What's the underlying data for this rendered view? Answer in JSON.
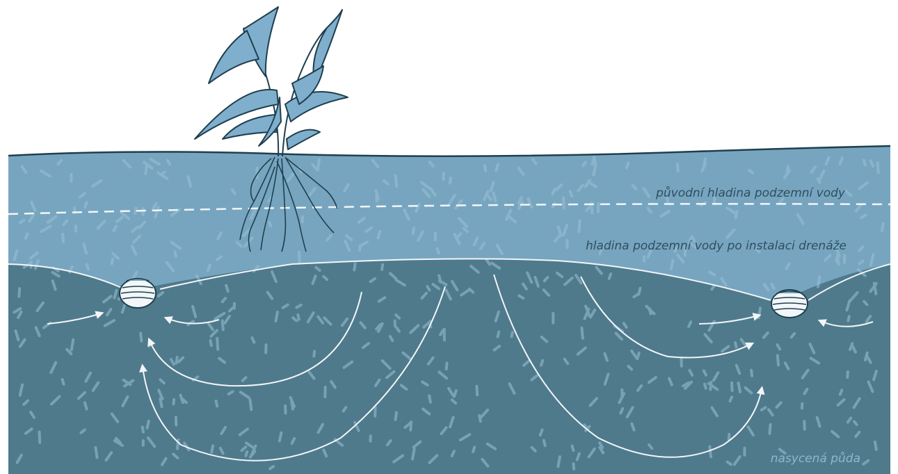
{
  "labels": {
    "original_water_table": "původní hladina podzemní vody",
    "water_table_after_drainage": "hladina podzemní vody po instalaci drenáže",
    "saturated_soil": "nasycená půda"
  },
  "colors": {
    "upper_soil": "#77a5c0",
    "saturated_soil": "#4f7a8c",
    "plant_leaf": "#7fafcc",
    "outline": "#1f3f4e",
    "water_line": "#f2f6f8",
    "texture": "#9cc2d6"
  },
  "icons": {
    "plant": "plant-icon",
    "drain_pipe": "drain-pipe-icon",
    "flow_arrow": "flow-arrow-icon"
  }
}
